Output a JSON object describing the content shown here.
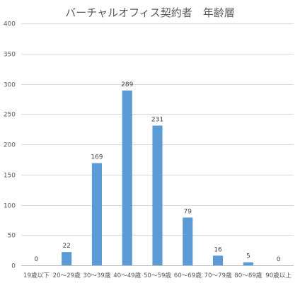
{
  "chart_data": {
    "type": "bar",
    "title": "バーチャルオフィス契約者　年齢層",
    "xlabel": "",
    "ylabel": "",
    "categories": [
      "19歳以下",
      "20〜29歳",
      "30〜39歳",
      "40〜49歳",
      "50〜59歳",
      "60〜69歳",
      "70〜79歳",
      "80〜89歳",
      "90歳以上"
    ],
    "values": [
      0,
      22,
      169,
      289,
      231,
      79,
      16,
      5,
      0
    ],
    "data_labels": [
      "0",
      "22",
      "169",
      "289",
      "231",
      "79",
      "16",
      "5",
      "0"
    ],
    "ylim": [
      0,
      400
    ],
    "yticks": [
      0,
      50,
      100,
      150,
      200,
      250,
      300,
      350,
      400
    ],
    "grid": true,
    "legend": "none",
    "colors": {
      "bar": "#5B9BD5",
      "grid": "#D9D9D9",
      "text": "#595959"
    }
  }
}
